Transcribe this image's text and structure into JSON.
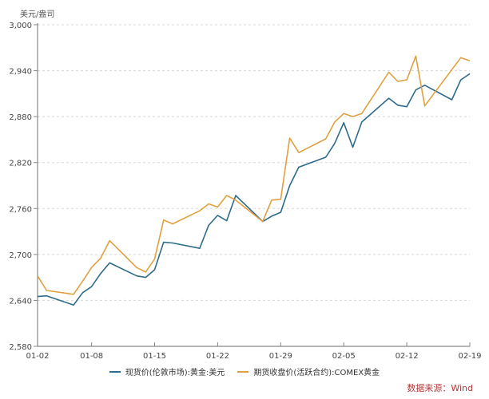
{
  "chart_data": {
    "type": "line",
    "title": "",
    "ylabel": "美元/盎司",
    "xlabel": "",
    "ylim": [
      2580,
      3000
    ],
    "yticks": [
      2580,
      2640,
      2700,
      2760,
      2820,
      2880,
      2940,
      3000
    ],
    "ytick_labels": [
      "2,580",
      "2,640",
      "2,700",
      "2,760",
      "2,820",
      "2,880",
      "2,940",
      "3,000"
    ],
    "xtick_labels": [
      "01-02",
      "01-08",
      "01-15",
      "01-22",
      "01-29",
      "02-05",
      "02-12",
      "02-19"
    ],
    "grid": "horizontal-dashed",
    "legend_position": "bottom",
    "x": [
      "01-02",
      "01-03",
      "01-06",
      "01-07",
      "01-08",
      "01-09",
      "01-10",
      "01-13",
      "01-14",
      "01-15",
      "01-16",
      "01-17",
      "01-20",
      "01-21",
      "01-22",
      "01-23",
      "01-24",
      "01-27",
      "01-28",
      "01-29",
      "01-30",
      "01-31",
      "02-03",
      "02-04",
      "02-05",
      "02-06",
      "02-07",
      "02-10",
      "02-11",
      "02-12",
      "02-13",
      "02-14",
      "02-17",
      "02-18",
      "02-19"
    ],
    "series": [
      {
        "name": "现货价(伦敦市场):黄金:美元",
        "color": "#2e6b8a",
        "values": [
          2645,
          2646,
          2634,
          2650,
          2658,
          2675,
          2689,
          2672,
          2670,
          2680,
          2716,
          2715,
          2708,
          2738,
          2751,
          2744,
          2777,
          2743,
          2750,
          2755,
          2790,
          2814,
          2827,
          2845,
          2872,
          2840,
          2873,
          2904,
          2895,
          2893,
          2915,
          2921,
          2902,
          2928,
          2936
        ]
      },
      {
        "name": "期货收盘价(活跃合约):COMEX黄金",
        "color": "#e0a040",
        "values": [
          2672,
          2653,
          2648,
          2665,
          2683,
          2695,
          2718,
          2683,
          2677,
          2694,
          2745,
          2740,
          2757,
          2766,
          2762,
          2777,
          2771,
          2743,
          2771,
          2772,
          2852,
          2833,
          2851,
          2873,
          2884,
          2880,
          2884,
          2938,
          2926,
          2928,
          2959,
          2894,
          null,
          2957,
          2953
        ]
      }
    ]
  },
  "labels": {
    "unit": "美元/盎司",
    "source": "数据来源：Wind"
  }
}
